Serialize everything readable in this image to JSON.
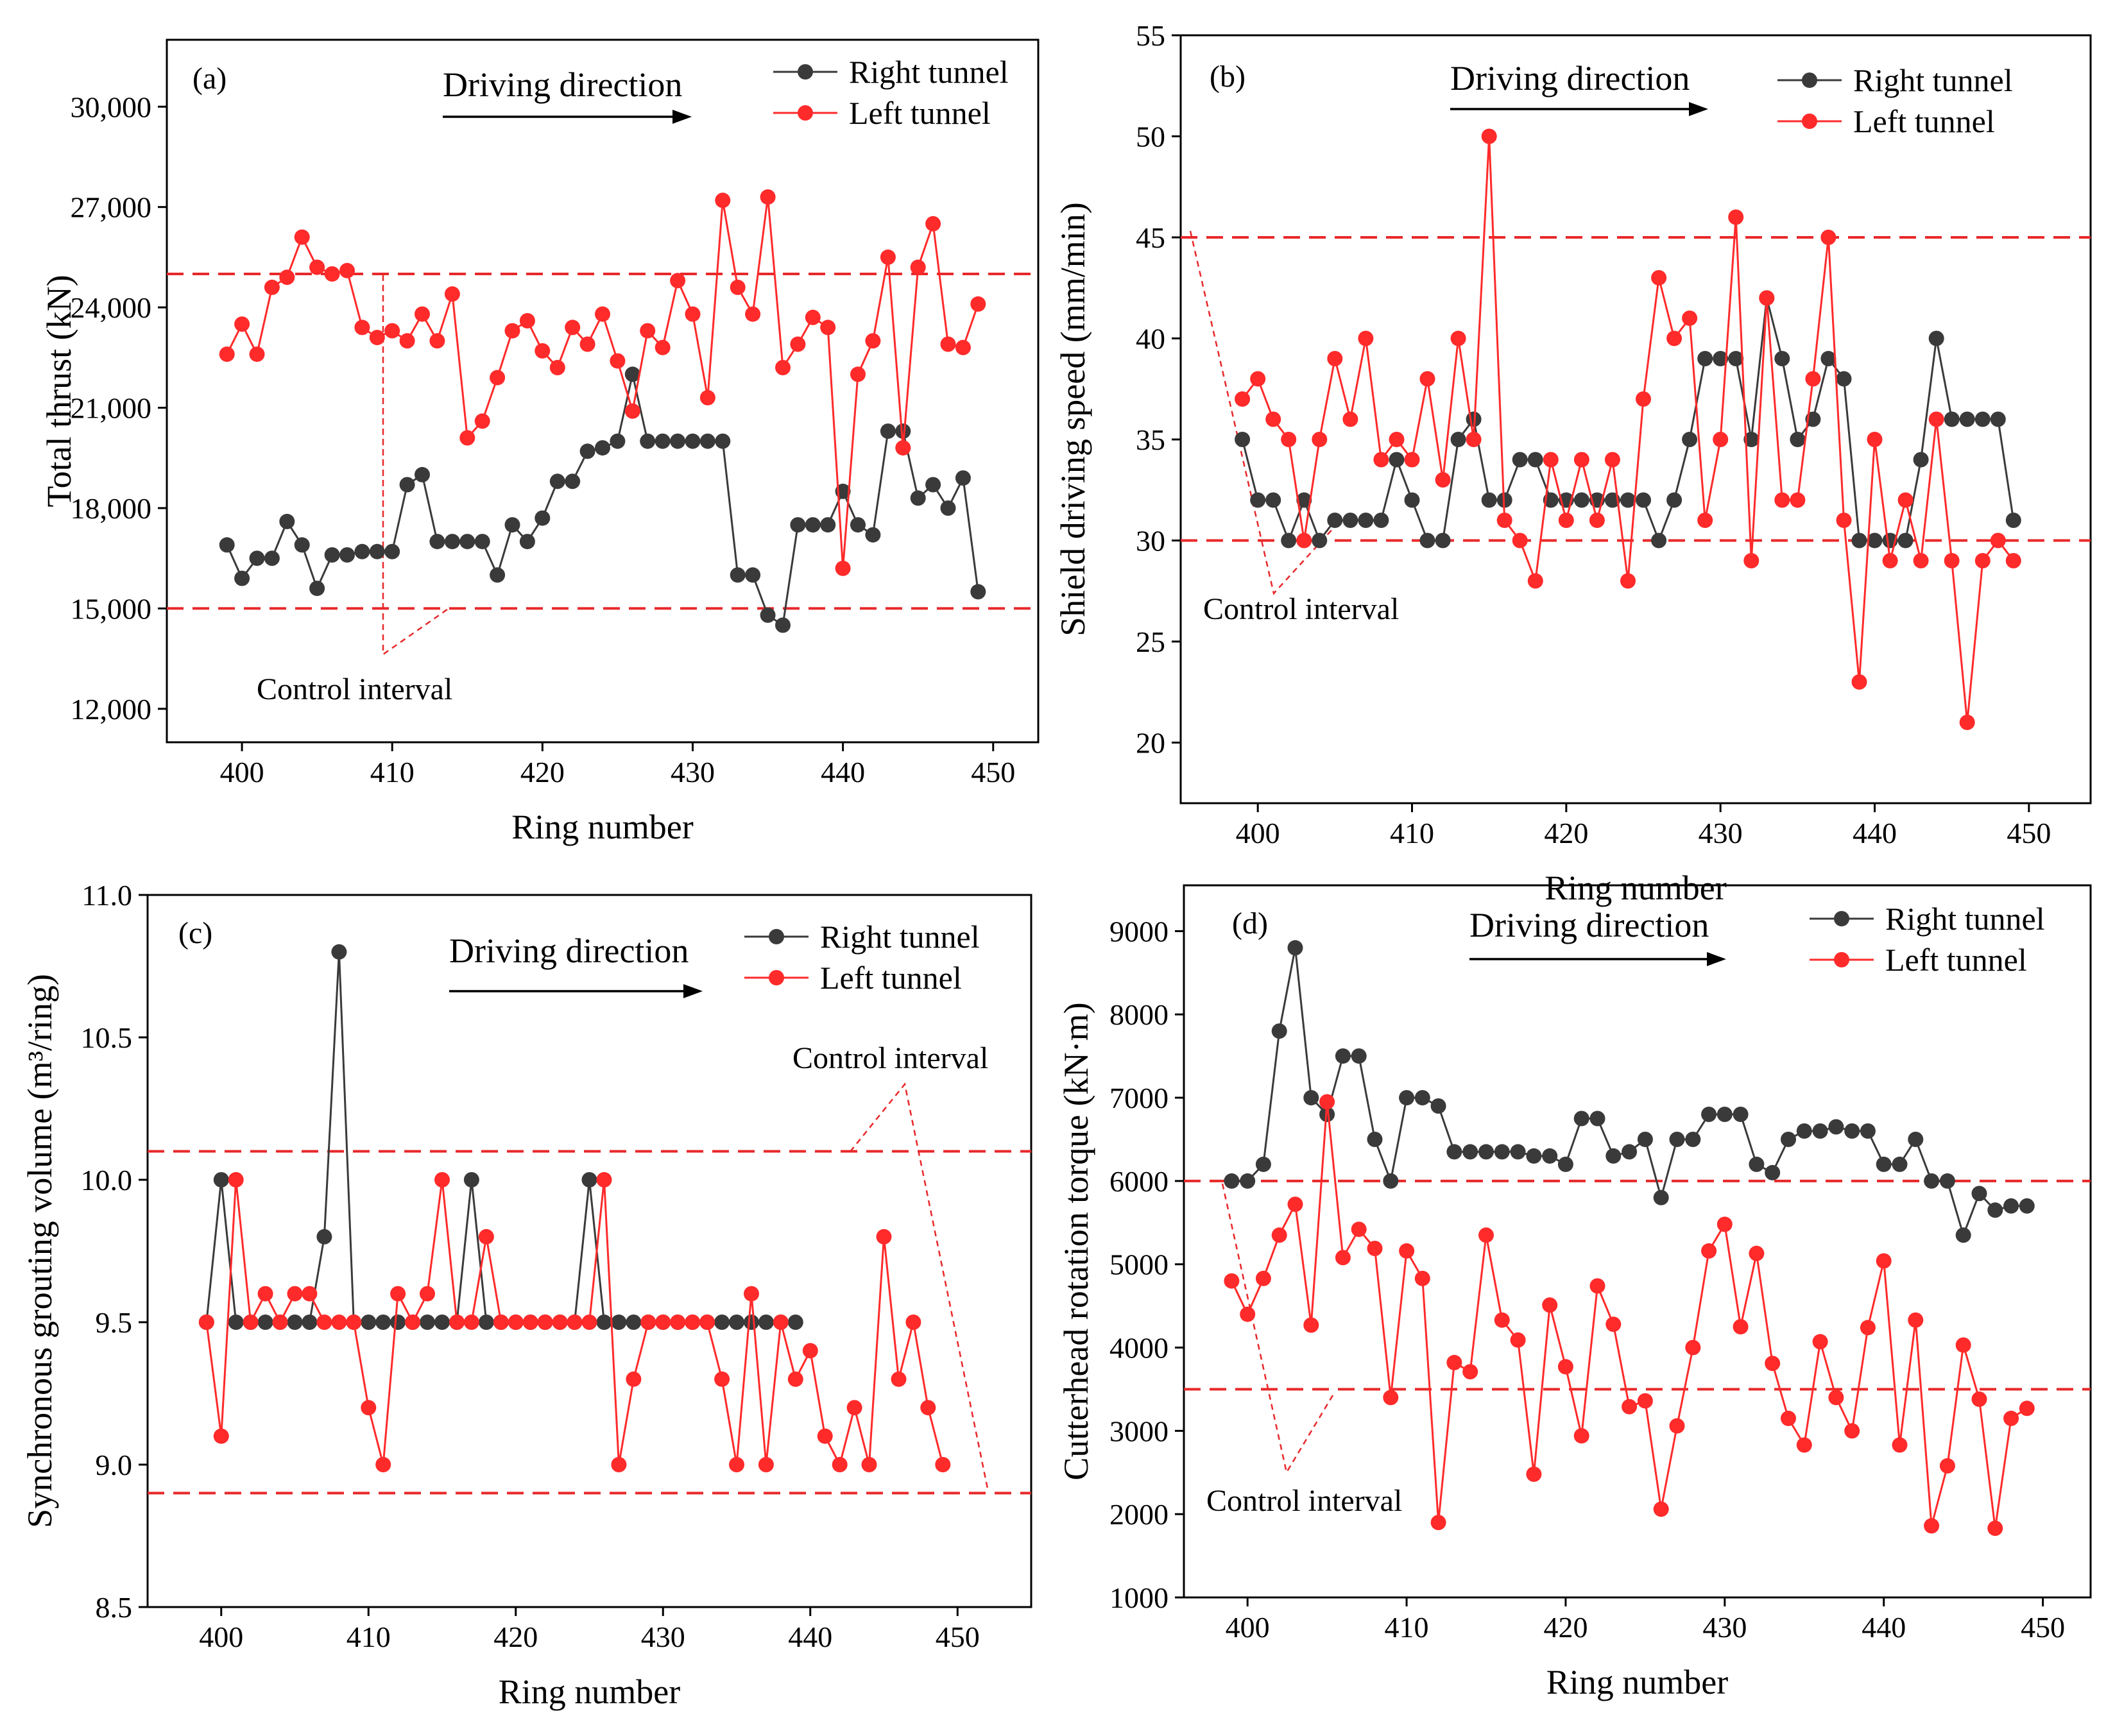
{
  "colors": {
    "right": "#3a3a3a",
    "left": "#ff2a2a",
    "control": "#e8282a",
    "axis": "#000000"
  },
  "legend": {
    "right": "Right tunnel",
    "left": "Left tunnel"
  },
  "direction_label": "Driving direction",
  "chart_data": [
    {
      "type": "line",
      "panel": "(a)",
      "title": "",
      "xlabel": "Ring number",
      "ylabel": "Total thrust (kN)",
      "xlim": [
        395,
        453
      ],
      "ylim": [
        11000,
        32000
      ],
      "xticks": [
        400,
        410,
        420,
        430,
        440,
        450
      ],
      "yticks": [
        12000,
        15000,
        18000,
        21000,
        24000,
        27000,
        30000
      ],
      "ytick_labels": [
        "12,000",
        "15,000",
        "18,000",
        "21,000",
        "24,000",
        "27,000",
        "30,000"
      ],
      "control_lines": [
        15000,
        25000
      ],
      "control_label": "Control interval",
      "x": [
        399,
        400,
        401,
        402,
        403,
        404,
        405,
        406,
        407,
        408,
        409,
        410,
        411,
        412,
        413,
        414,
        415,
        416,
        417,
        418,
        419,
        420,
        421,
        422,
        423,
        424,
        425,
        426,
        427,
        428,
        429,
        430,
        431,
        432,
        433,
        434,
        435,
        436,
        437,
        438,
        439,
        440,
        441,
        442,
        443,
        444,
        445,
        446,
        447,
        448,
        449
      ],
      "series": [
        {
          "name": "Right tunnel",
          "values": [
            16900,
            15900,
            16500,
            16500,
            17600,
            16900,
            15600,
            16600,
            16600,
            16700,
            16700,
            16700,
            18700,
            19000,
            17000,
            17000,
            17000,
            17000,
            16000,
            17500,
            17000,
            17700,
            18800,
            18800,
            19700,
            19800,
            20000,
            22000,
            20000,
            20000,
            20000,
            20000,
            20000,
            20000,
            16000,
            16000,
            14800,
            14500,
            17500,
            17500,
            17500,
            18500,
            17500,
            17200,
            20300,
            20300,
            18300,
            18700,
            18000,
            18900,
            15500
          ]
        },
        {
          "name": "Left tunnel",
          "values": [
            22600,
            23500,
            22600,
            24600,
            24900,
            26100,
            25200,
            25000,
            25100,
            23400,
            23100,
            23300,
            23000,
            23800,
            23000,
            24400,
            20100,
            20600,
            21900,
            23300,
            23600,
            22700,
            22200,
            23400,
            22900,
            23800,
            22400,
            20900,
            23300,
            22800,
            24800,
            23800,
            21300,
            27200,
            24600,
            23800,
            27300,
            22200,
            22900,
            23700,
            23400,
            16200,
            22000,
            23000,
            25500,
            19800,
            25200,
            26500,
            22900,
            22800,
            24100
          ]
        }
      ]
    },
    {
      "type": "line",
      "panel": "(b)",
      "title": "",
      "xlabel": "Ring number",
      "ylabel": "Shield driving speed (mm/min)",
      "xlim": [
        395,
        454
      ],
      "ylim": [
        17,
        55
      ],
      "xticks": [
        400,
        410,
        420,
        430,
        440,
        450
      ],
      "yticks": [
        20,
        25,
        30,
        35,
        40,
        45,
        50,
        55
      ],
      "ytick_labels": [
        "20",
        "25",
        "30",
        "35",
        "40",
        "45",
        "50",
        "55"
      ],
      "control_lines": [
        30,
        45
      ],
      "control_label": "Control interval",
      "x": [
        399,
        400,
        401,
        402,
        403,
        404,
        405,
        406,
        407,
        408,
        409,
        410,
        411,
        412,
        413,
        414,
        415,
        416,
        417,
        418,
        419,
        420,
        421,
        422,
        423,
        424,
        425,
        426,
        427,
        428,
        429,
        430,
        431,
        432,
        433,
        434,
        435,
        436,
        437,
        438,
        439,
        440,
        441,
        442,
        443,
        444,
        445,
        446,
        447,
        448,
        449
      ],
      "series": [
        {
          "name": "Right tunnel",
          "values": [
            35,
            32,
            32,
            30,
            32,
            30,
            31,
            31,
            31,
            31,
            34,
            32,
            30,
            30,
            35,
            36,
            32,
            32,
            34,
            34,
            32,
            32,
            32,
            32,
            32,
            32,
            32,
            30,
            32,
            35,
            39,
            39,
            39,
            35,
            42,
            39,
            35,
            36,
            39,
            38,
            30,
            30,
            30,
            30,
            34,
            40,
            36,
            36,
            36,
            36,
            31
          ]
        },
        {
          "name": "Left tunnel",
          "values": [
            37,
            38,
            36,
            35,
            30,
            35,
            39,
            36,
            40,
            34,
            35,
            34,
            38,
            33,
            40,
            35,
            50,
            31,
            30,
            28,
            34,
            31,
            34,
            31,
            34,
            28,
            37,
            43,
            40,
            41,
            31,
            35,
            46,
            29,
            42,
            32,
            32,
            38,
            45,
            31,
            23,
            35,
            29,
            32,
            29,
            36,
            29,
            21,
            29,
            30,
            29
          ]
        }
      ]
    },
    {
      "type": "line",
      "panel": "(c)",
      "title": "",
      "xlabel": "Ring number",
      "ylabel": "Synchronous grouting volume (m³/ring)",
      "xlim": [
        395,
        455
      ],
      "ylim": [
        8.5,
        11.0
      ],
      "xticks": [
        400,
        410,
        420,
        430,
        440,
        450
      ],
      "yticks": [
        8.5,
        9.0,
        9.5,
        10.0,
        10.5,
        11.0
      ],
      "ytick_labels": [
        "8.5",
        "9.0",
        "9.5",
        "10.0",
        "10.5",
        "11.0"
      ],
      "control_lines": [
        8.9,
        10.1
      ],
      "control_label": "Control interval",
      "x_right": [
        399,
        400,
        401,
        402,
        403,
        404,
        405,
        406,
        407,
        408,
        409,
        410,
        411,
        412,
        413,
        414,
        415,
        416,
        417,
        418,
        419,
        420,
        421,
        422,
        423,
        424,
        425,
        426,
        427,
        428,
        429,
        430,
        431,
        432,
        433,
        434,
        435,
        436,
        437,
        438,
        439
      ],
      "x_left": [
        399,
        400,
        401,
        402,
        403,
        404,
        405,
        406,
        407,
        408,
        409,
        410,
        411,
        412,
        413,
        414,
        415,
        416,
        417,
        418,
        419,
        420,
        421,
        422,
        423,
        424,
        425,
        426,
        427,
        428,
        429,
        430,
        431,
        432,
        433,
        434,
        435,
        436,
        437,
        438,
        439,
        440,
        441,
        442,
        443,
        444,
        445,
        446,
        447,
        448,
        449
      ],
      "series": [
        {
          "name": "Right tunnel",
          "values": [
            9.5,
            10.0,
            9.5,
            9.5,
            9.5,
            9.5,
            9.5,
            9.5,
            9.8,
            10.8,
            9.5,
            9.5,
            9.5,
            9.5,
            9.5,
            9.5,
            9.5,
            9.5,
            10.0,
            9.5,
            9.5,
            9.5,
            9.5,
            9.5,
            9.5,
            9.5,
            10.0,
            9.5,
            9.5,
            9.5,
            9.5,
            9.5,
            9.5,
            9.5,
            9.5,
            9.5,
            9.5,
            9.5,
            9.5,
            9.5,
            9.5
          ]
        },
        {
          "name": "Left tunnel",
          "values": [
            9.5,
            9.1,
            10.0,
            9.5,
            9.6,
            9.5,
            9.6,
            9.6,
            9.5,
            9.5,
            9.5,
            9.2,
            9.0,
            9.6,
            9.5,
            9.6,
            10.0,
            9.5,
            9.5,
            9.8,
            9.5,
            9.5,
            9.5,
            9.5,
            9.5,
            9.5,
            9.5,
            10.0,
            9.0,
            9.3,
            9.5,
            9.5,
            9.5,
            9.5,
            9.5,
            9.3,
            9.0,
            9.6,
            9.0,
            9.5,
            9.3,
            9.4,
            9.1,
            9.0,
            9.2,
            9.0,
            9.8,
            9.3,
            9.5,
            9.2,
            9.0
          ]
        }
      ]
    },
    {
      "type": "line",
      "panel": "(d)",
      "title": "",
      "xlabel": "Ring number",
      "ylabel": "Cutterhead rotation torque (kN·m)",
      "xlim": [
        396,
        453
      ],
      "ylim": [
        1000,
        9550
      ],
      "xticks": [
        400,
        410,
        420,
        430,
        440,
        450
      ],
      "yticks": [
        1000,
        2000,
        3000,
        4000,
        5000,
        6000,
        7000,
        8000,
        9000
      ],
      "ytick_labels": [
        "1000",
        "2000",
        "3000",
        "4000",
        "5000",
        "6000",
        "7000",
        "8000",
        "9000"
      ],
      "control_lines": [
        3500,
        6000
      ],
      "control_label": "Control interval",
      "x": [
        399,
        400,
        401,
        402,
        403,
        404,
        405,
        406,
        407,
        408,
        409,
        410,
        411,
        412,
        413,
        414,
        415,
        416,
        417,
        418,
        419,
        420,
        421,
        422,
        423,
        424,
        425,
        426,
        427,
        428,
        429,
        430,
        431,
        432,
        433,
        434,
        435,
        436,
        437,
        438,
        439,
        440,
        441,
        442,
        443,
        444,
        445,
        446,
        447,
        448,
        449
      ],
      "series": [
        {
          "name": "Right tunnel",
          "values": [
            6000,
            6000,
            6200,
            7800,
            8800,
            7000,
            6800,
            7500,
            7500,
            6500,
            6000,
            7000,
            7000,
            6900,
            6350,
            6350,
            6350,
            6350,
            6350,
            6300,
            6300,
            6200,
            6750,
            6750,
            6300,
            6350,
            6500,
            5800,
            6500,
            6500,
            6800,
            6800,
            6800,
            6200,
            6100,
            6500,
            6600,
            6600,
            6650,
            6600,
            6600,
            6200,
            6200,
            6500,
            6000,
            6000,
            5350,
            5850,
            5650,
            5700,
            5700
          ]
        },
        {
          "name": "Left tunnel",
          "values": [
            4800,
            4400,
            4830,
            5350,
            5720,
            4270,
            6950,
            5080,
            5420,
            5190,
            3400,
            5160,
            4830,
            1900,
            3820,
            3710,
            5350,
            4330,
            4090,
            2480,
            4510,
            3770,
            2940,
            4740,
            4280,
            3290,
            3360,
            2060,
            3060,
            4000,
            5160,
            5480,
            4250,
            5130,
            3810,
            3150,
            2830,
            4070,
            3400,
            3000,
            4240,
            5040,
            2830,
            4330,
            1860,
            2580,
            4030,
            3380,
            1830,
            3150,
            3270
          ]
        }
      ]
    }
  ]
}
